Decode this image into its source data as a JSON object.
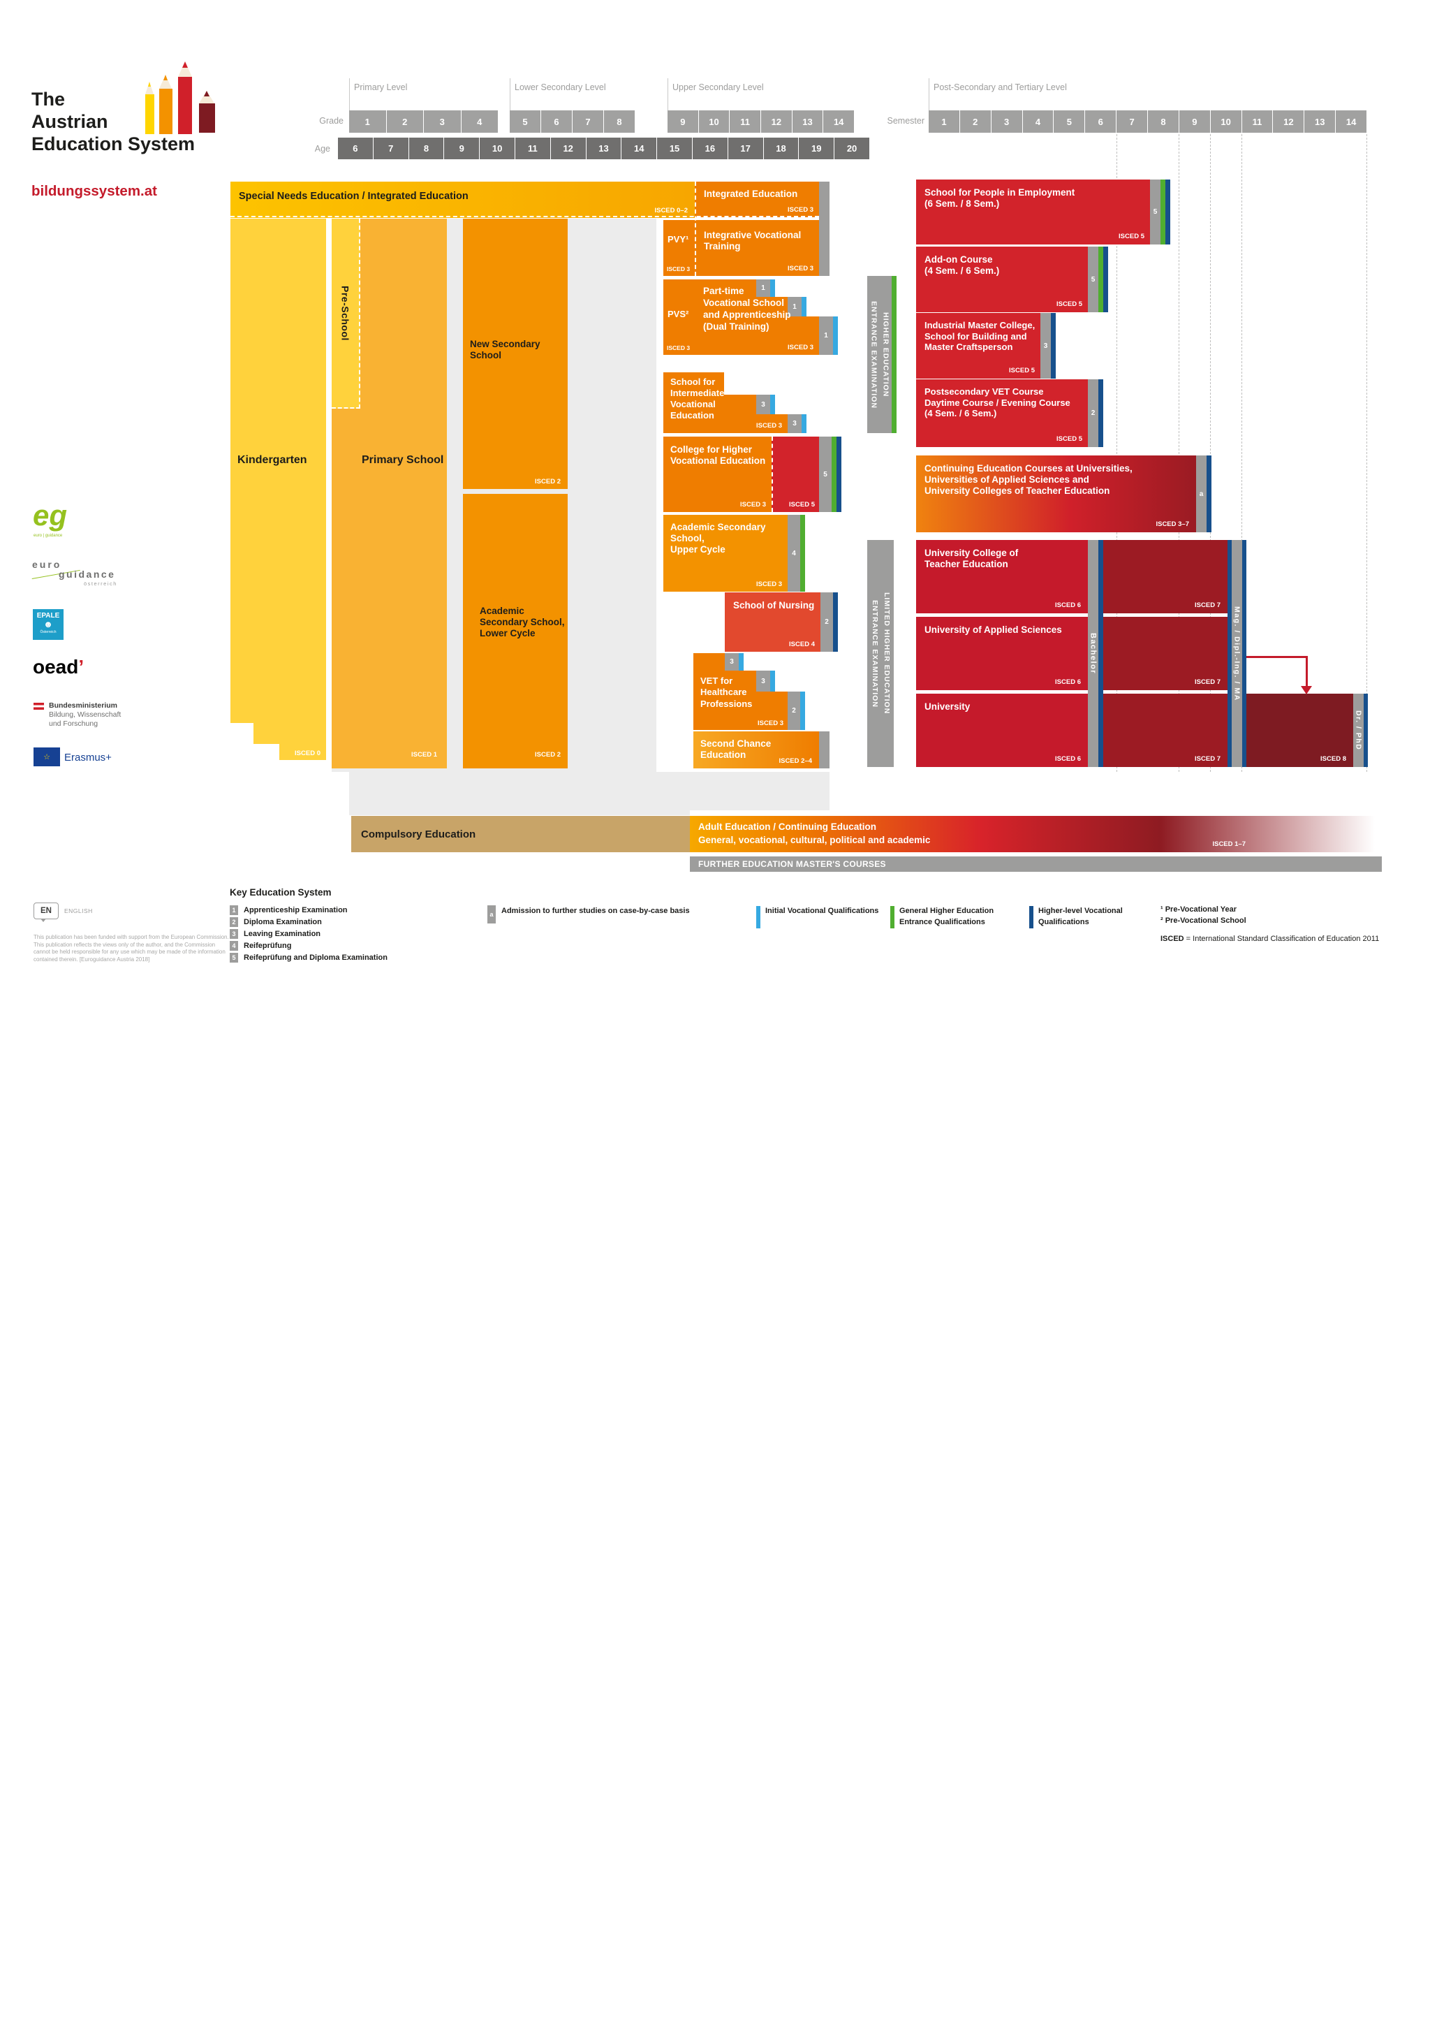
{
  "logo": {
    "title": "The\nAustrian\nEducation System",
    "site": "bildungssystem.at"
  },
  "axis": {
    "grade_label": "Grade",
    "age_label": "Age",
    "semester_label": "Semester",
    "level_primary": "Primary Level",
    "level_lower": "Lower Secondary Level",
    "level_upper": "Upper Secondary Level",
    "level_post": "Post-Secondary and Tertiary Level",
    "grades_primary": [
      "1",
      "2",
      "3",
      "4"
    ],
    "grades_lower": [
      "5",
      "6",
      "7",
      "8"
    ],
    "grades_upper": [
      "9",
      "10",
      "11",
      "12",
      "13",
      "14"
    ],
    "ages": [
      "6",
      "7",
      "8",
      "9",
      "10",
      "11",
      "12",
      "13",
      "14",
      "15",
      "16",
      "17",
      "18",
      "19",
      "20"
    ],
    "semesters": [
      "1",
      "2",
      "3",
      "4",
      "5",
      "6",
      "7",
      "8",
      "9",
      "10",
      "11",
      "12",
      "13",
      "14"
    ]
  },
  "blocks": {
    "special_needs": {
      "label": "Special Needs Education / Integrated Education",
      "isced": "ISCED 0–2"
    },
    "integrated": {
      "label": "Integrated Education",
      "isced": "ISCED 3"
    },
    "kindergarten": {
      "label": "Kindergarten",
      "isced": "ISCED 0"
    },
    "preschool": {
      "label": "Pre-School"
    },
    "primary": {
      "label": "Primary School",
      "isced": "ISCED 1"
    },
    "new_secondary": {
      "label": "New Secondary School",
      "isced": "ISCED 2"
    },
    "academic_lower": {
      "label": "Academic\nSecondary School,\nLower Cycle",
      "isced": "ISCED 2"
    },
    "pvy": {
      "label": "PVY¹",
      "isced": "ISCED 3"
    },
    "integrative": {
      "label": "Integrative Vocational\nTraining",
      "isced": "ISCED 3"
    },
    "pvs": {
      "label": "PVS²",
      "isced": "ISCED 3"
    },
    "parttime": {
      "label": "Part-time\nVocational School\nand Apprenticeship\n(Dual Training)",
      "isced": "ISCED 3",
      "tab": "1"
    },
    "intermediate": {
      "label": "School for\nIntermediate\nVocational\nEducation",
      "isced": "ISCED 3",
      "tab": "3"
    },
    "college": {
      "label": "College for Higher\nVocational Education",
      "isced_left": "ISCED 3",
      "isced_right": "ISCED 5",
      "tab": "5"
    },
    "academic_upper": {
      "label": "Academic Secondary\nSchool,\nUpper Cycle",
      "isced": "ISCED 3",
      "tab": "4"
    },
    "nursing": {
      "label": "School of Nursing",
      "isced": "ISCED 4",
      "tab": "2"
    },
    "vet_health": {
      "label": "VET for\nHealthcare\nProfessions",
      "isced": "ISCED 3",
      "tab1": "3",
      "tab2": "3",
      "tab3": "2"
    },
    "second_chance": {
      "label": "Second Chance Education",
      "isced": "ISCED 2–4"
    },
    "employment": {
      "label": "School for People in Employment\n(6 Sem. / 8 Sem.)",
      "isced": "ISCED 5",
      "tab": "5"
    },
    "addon": {
      "label": "Add-on Course\n(4 Sem. / 6 Sem.)",
      "isced": "ISCED 5",
      "tab": "5"
    },
    "industrial": {
      "label": "Industrial Master College,\nSchool for Building and\nMaster Craftsperson",
      "isced": "ISCED 5",
      "tab": "3"
    },
    "postsecondary": {
      "label": "Postsecondary VET Course\nDaytime Course / Evening Course\n(4 Sem. / 6 Sem.)",
      "isced": "ISCED 5",
      "tab": "2"
    },
    "continuing": {
      "label": "Continuing Education Courses at Universities,\nUniversities of Applied Sciences and\nUniversity Colleges of Teacher Education",
      "isced": "ISCED 3–7",
      "tab": "a"
    },
    "teacher_college": {
      "label": "University College of\nTeacher Education",
      "isced6": "ISCED 6",
      "isced7": "ISCED 7"
    },
    "applied_sciences": {
      "label": "University of Applied Sciences",
      "isced6": "ISCED 6",
      "isced7": "ISCED 7"
    },
    "university": {
      "label": "University",
      "isced6": "ISCED 6",
      "isced7": "ISCED 7",
      "isced8": "ISCED 8"
    }
  },
  "bars": {
    "higher_ed_exam": "HIGHER EDUCATION\nENTRANCE EXAMINATION",
    "limited_exam": "LIMITED HIGHER EDUCATION\nENTRANCE EXAMINATION",
    "bachelor": "Bachelor",
    "magister": "Mag. / Dipl.-Ing. / MA",
    "doctor": "Dr. / PhD"
  },
  "bottom": {
    "compulsory": "Compulsory Education",
    "adult_line1": "Adult Education / Continuing Education",
    "adult_line2": "General, vocational, cultural, political and academic",
    "adult_isced": "ISCED 1–7",
    "further": "FURTHER EDUCATION MASTER'S COURSES"
  },
  "legend": {
    "title": "Key Education System",
    "items": [
      {
        "key": "1",
        "text": "Apprenticeship Examination"
      },
      {
        "key": "2",
        "text": "Diploma Examination"
      },
      {
        "key": "3",
        "text": "Leaving Examination"
      },
      {
        "key": "4",
        "text": "Reifeprüfung"
      },
      {
        "key": "5",
        "text": "Reifeprüfung and Diploma Examination"
      }
    ],
    "admission_key": "a",
    "admission_text": "Admission to further studies on case-by-case basis",
    "initial_vocational": "Initial Vocational Qualifications",
    "general_higher": "General Higher Education\nEntrance Qualifications",
    "higher_vocational": "Higher-level Vocational\nQualifications",
    "note1": "¹ Pre-Vocational Year",
    "note2": "² Pre-Vocational School",
    "isced_bold": "ISCED",
    "isced_rest": " = International Standard Classification of Education 2011"
  },
  "footer": {
    "lang_code": "EN",
    "lang_name": "ENGLISH",
    "disclaimer": "This publication has been funded with support from the European Commission.\nThis publication reflects the views only of the author, and the Commission\ncannot be held responsible for any use which may be made of the information\ncontained therein. [Euroguidance Austria 2018]"
  },
  "partners": {
    "eg_mark": "eg",
    "eg_small": "euro | guidance",
    "eg_line1": "euro",
    "eg_line2": "guidance",
    "eg_line3": "österreich",
    "epale": "EPALE",
    "epale_sub": "Österreich",
    "oead": "oead",
    "oead_mark": "’",
    "ministry_line1": "Bundesministerium",
    "ministry_line2": "Bildung, Wissenschaft",
    "ministry_line3": "und Forschung",
    "erasmus": "Erasmus+"
  },
  "colors": {
    "yellow": "#FFD23C",
    "primary_orange": "#F9B233",
    "secondary_orange": "#F39200",
    "vocational_orange": "#EF7D00",
    "nursing_red": "#E2492E",
    "course_red": "#D2232B",
    "tertiary_red": "#C51A2B",
    "isced7_red": "#9C1B23",
    "isced8_red": "#7E1B22",
    "gray_bar": "#9D9D9C",
    "age_gray": "#706F6E",
    "light_blue": "#36A9E1",
    "green": "#50AE30",
    "dark_blue": "#17508C",
    "tan": "#C8A468",
    "brand_red": "#C41B2B"
  }
}
